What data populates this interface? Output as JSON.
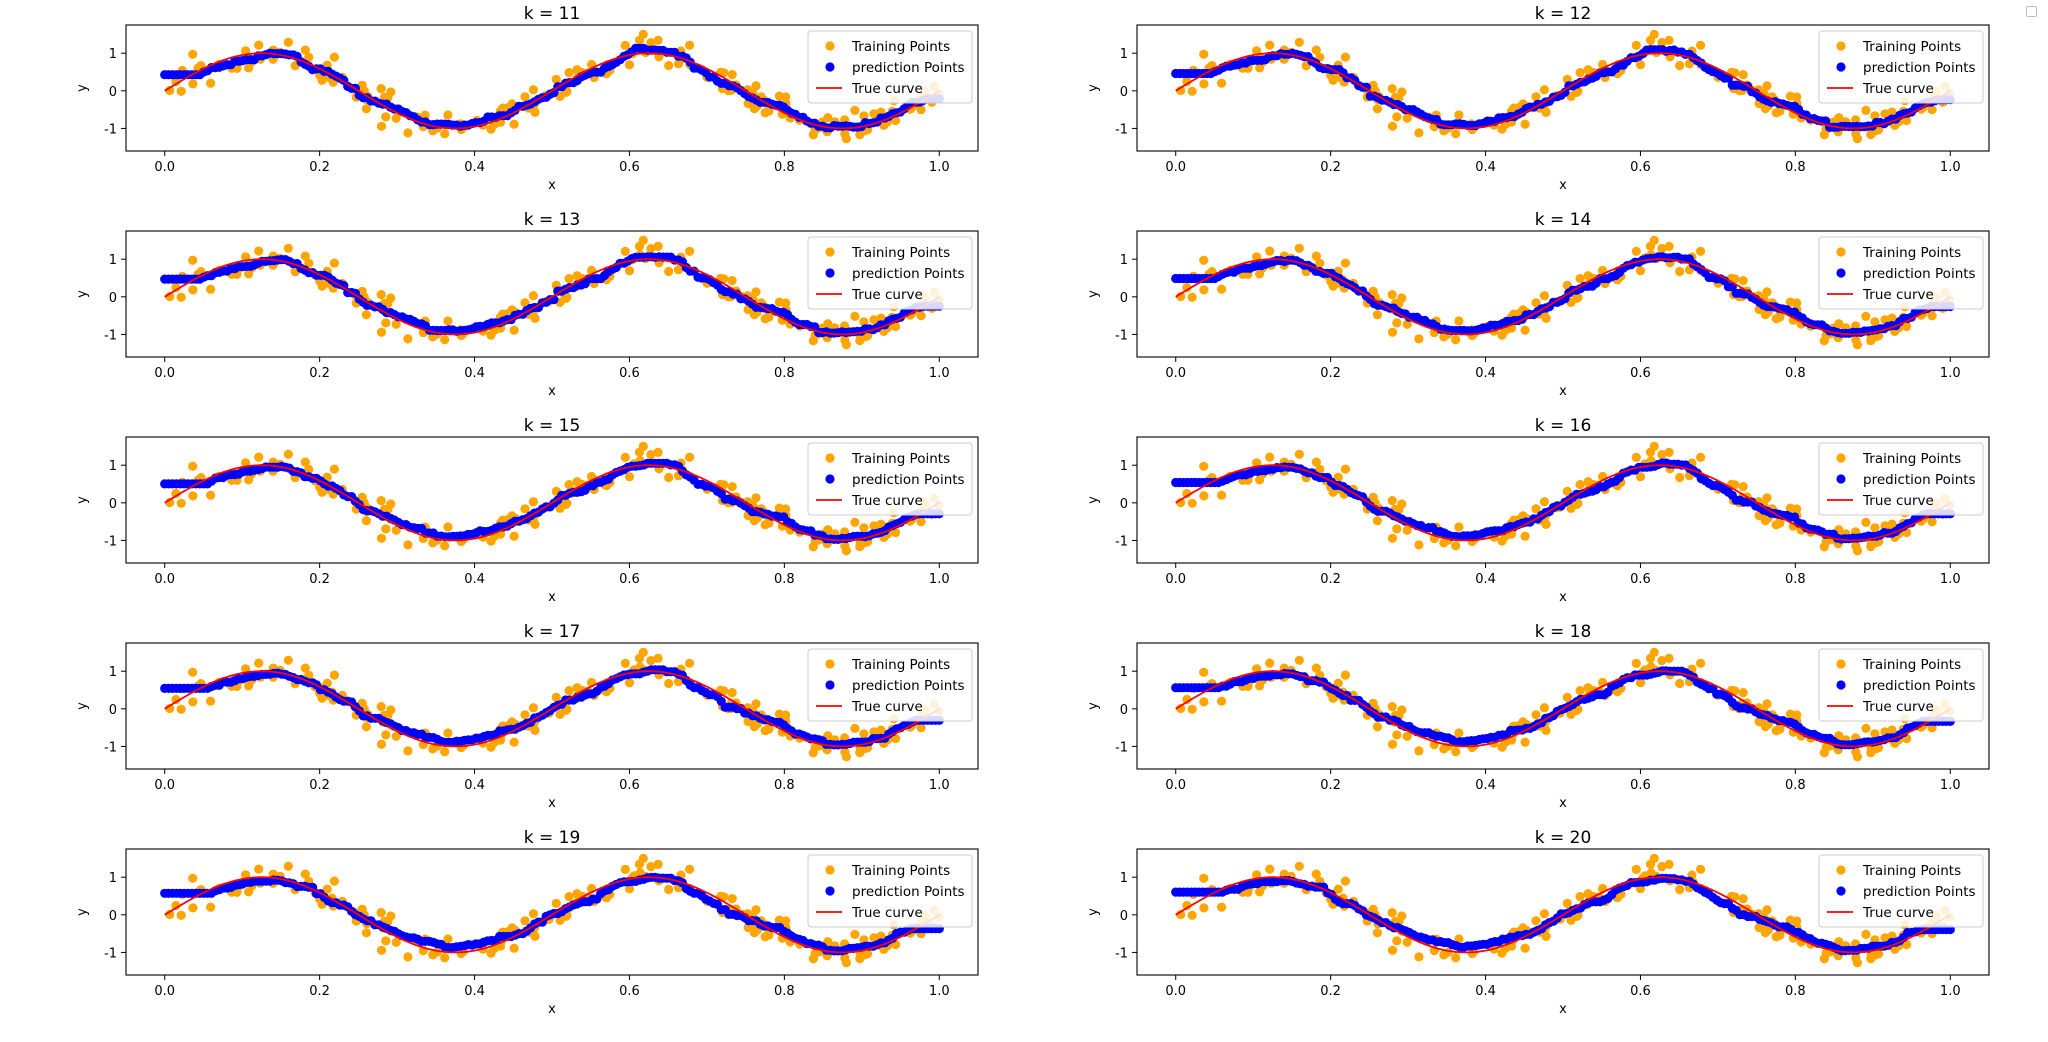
{
  "colors": {
    "training": "#ffa500",
    "prediction": "#0000ff",
    "true_curve": "#ff0000",
    "axes": "#000000",
    "background": "#ffffff"
  },
  "legend": {
    "training_label": "Training Points",
    "prediction_label": "prediction Points",
    "true_label": "True curve",
    "position": "top-right"
  },
  "chart_data": [
    {
      "type": "scatter",
      "title": "k = 11",
      "xlabel": "x",
      "ylabel": "y",
      "xlim": [
        -0.05,
        1.05
      ],
      "ylim": [
        -1.6,
        1.75
      ],
      "xticks": [
        "0.0",
        "0.2",
        "0.4",
        "0.6",
        "0.8",
        "1.0"
      ],
      "yticks": [
        "1",
        "0",
        "-1"
      ],
      "k": 11,
      "grid": false,
      "series": [
        {
          "name": "Training Points"
        },
        {
          "name": "prediction Points"
        },
        {
          "name": "True curve"
        }
      ]
    },
    {
      "type": "scatter",
      "title": "k = 12",
      "xlabel": "x",
      "ylabel": "y",
      "xlim": [
        -0.05,
        1.05
      ],
      "ylim": [
        -1.6,
        1.75
      ],
      "xticks": [
        "0.0",
        "0.2",
        "0.4",
        "0.6",
        "0.8",
        "1.0"
      ],
      "yticks": [
        "1",
        "0",
        "-1"
      ],
      "k": 12,
      "grid": false,
      "series": [
        {
          "name": "Training Points"
        },
        {
          "name": "prediction Points"
        },
        {
          "name": "True curve"
        }
      ]
    },
    {
      "type": "scatter",
      "title": "k = 13",
      "xlabel": "x",
      "ylabel": "y",
      "xlim": [
        -0.05,
        1.05
      ],
      "ylim": [
        -1.6,
        1.75
      ],
      "xticks": [
        "0.0",
        "0.2",
        "0.4",
        "0.6",
        "0.8",
        "1.0"
      ],
      "yticks": [
        "1",
        "0",
        "-1"
      ],
      "k": 13,
      "grid": false,
      "series": [
        {
          "name": "Training Points"
        },
        {
          "name": "prediction Points"
        },
        {
          "name": "True curve"
        }
      ]
    },
    {
      "type": "scatter",
      "title": "k = 14",
      "xlabel": "x",
      "ylabel": "y",
      "xlim": [
        -0.05,
        1.05
      ],
      "ylim": [
        -1.6,
        1.75
      ],
      "xticks": [
        "0.0",
        "0.2",
        "0.4",
        "0.6",
        "0.8",
        "1.0"
      ],
      "yticks": [
        "1",
        "0",
        "-1"
      ],
      "k": 14,
      "grid": false,
      "series": [
        {
          "name": "Training Points"
        },
        {
          "name": "prediction Points"
        },
        {
          "name": "True curve"
        }
      ]
    },
    {
      "type": "scatter",
      "title": "k = 15",
      "xlabel": "x",
      "ylabel": "y",
      "xlim": [
        -0.05,
        1.05
      ],
      "ylim": [
        -1.6,
        1.75
      ],
      "xticks": [
        "0.0",
        "0.2",
        "0.4",
        "0.6",
        "0.8",
        "1.0"
      ],
      "yticks": [
        "1",
        "0",
        "-1"
      ],
      "k": 15,
      "grid": false,
      "series": [
        {
          "name": "Training Points"
        },
        {
          "name": "prediction Points"
        },
        {
          "name": "True curve"
        }
      ]
    },
    {
      "type": "scatter",
      "title": "k = 16",
      "xlabel": "x",
      "ylabel": "y",
      "xlim": [
        -0.05,
        1.05
      ],
      "ylim": [
        -1.6,
        1.75
      ],
      "xticks": [
        "0.0",
        "0.2",
        "0.4",
        "0.6",
        "0.8",
        "1.0"
      ],
      "yticks": [
        "1",
        "0",
        "-1"
      ],
      "k": 16,
      "grid": false,
      "series": [
        {
          "name": "Training Points"
        },
        {
          "name": "prediction Points"
        },
        {
          "name": "True curve"
        }
      ]
    },
    {
      "type": "scatter",
      "title": "k = 17",
      "xlabel": "x",
      "ylabel": "y",
      "xlim": [
        -0.05,
        1.05
      ],
      "ylim": [
        -1.6,
        1.75
      ],
      "xticks": [
        "0.0",
        "0.2",
        "0.4",
        "0.6",
        "0.8",
        "1.0"
      ],
      "yticks": [
        "1",
        "0",
        "-1"
      ],
      "k": 17,
      "grid": false,
      "series": [
        {
          "name": "Training Points"
        },
        {
          "name": "prediction Points"
        },
        {
          "name": "True curve"
        }
      ]
    },
    {
      "type": "scatter",
      "title": "k = 18",
      "xlabel": "x",
      "ylabel": "y",
      "xlim": [
        -0.05,
        1.05
      ],
      "ylim": [
        -1.6,
        1.75
      ],
      "xticks": [
        "0.0",
        "0.2",
        "0.4",
        "0.6",
        "0.8",
        "1.0"
      ],
      "yticks": [
        "1",
        "0",
        "-1"
      ],
      "k": 18,
      "grid": false,
      "series": [
        {
          "name": "Training Points"
        },
        {
          "name": "prediction Points"
        },
        {
          "name": "True curve"
        }
      ]
    },
    {
      "type": "scatter",
      "title": "k = 19",
      "xlabel": "x",
      "ylabel": "y",
      "xlim": [
        -0.05,
        1.05
      ],
      "ylim": [
        -1.6,
        1.75
      ],
      "xticks": [
        "0.0",
        "0.2",
        "0.4",
        "0.6",
        "0.8",
        "1.0"
      ],
      "yticks": [
        "1",
        "0",
        "-1"
      ],
      "k": 19,
      "grid": false,
      "series": [
        {
          "name": "Training Points"
        },
        {
          "name": "prediction Points"
        },
        {
          "name": "True curve"
        }
      ]
    },
    {
      "type": "scatter",
      "title": "k = 20",
      "xlabel": "x",
      "ylabel": "y",
      "xlim": [
        -0.05,
        1.05
      ],
      "ylim": [
        -1.6,
        1.75
      ],
      "xticks": [
        "0.0",
        "0.2",
        "0.4",
        "0.6",
        "0.8",
        "1.0"
      ],
      "yticks": [
        "1",
        "0",
        "-1"
      ],
      "k": 20,
      "grid": false,
      "series": [
        {
          "name": "Training Points"
        },
        {
          "name": "prediction Points"
        },
        {
          "name": "True curve"
        }
      ]
    }
  ]
}
